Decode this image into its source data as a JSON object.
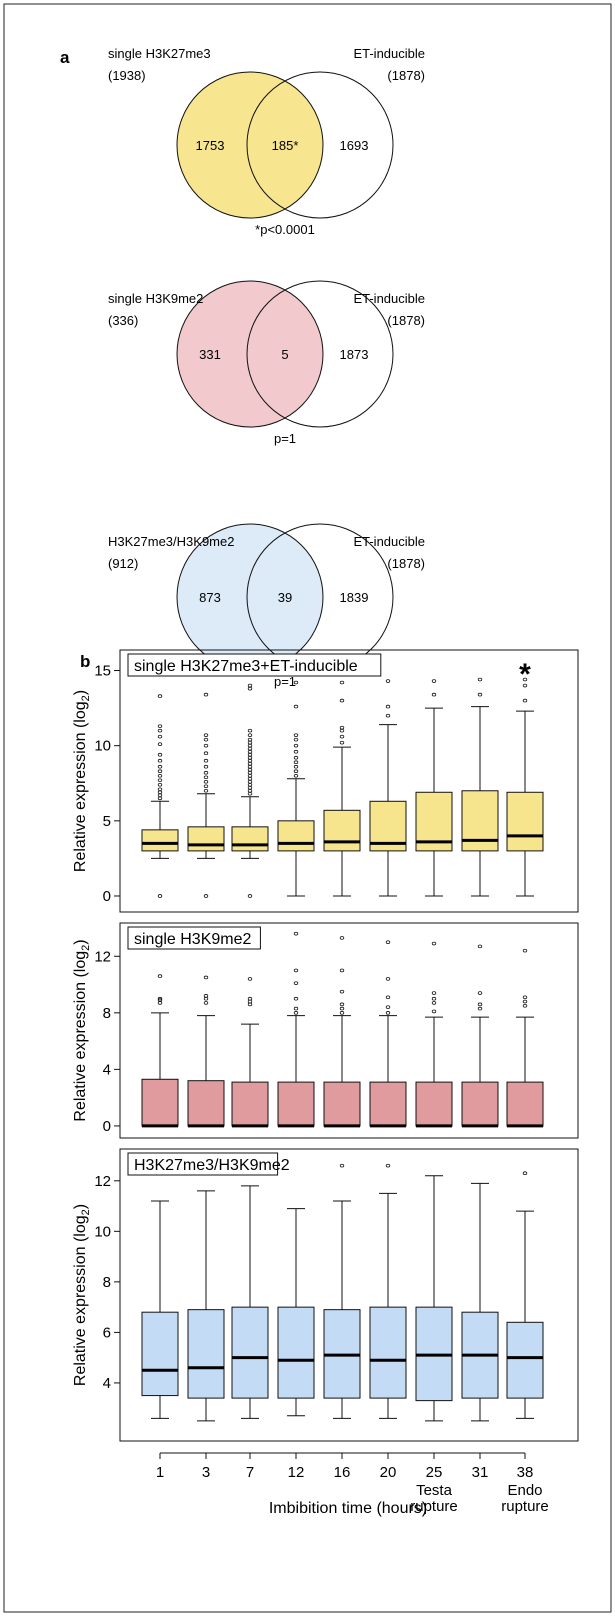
{
  "panel_labels": {
    "a": "a",
    "b": "b"
  },
  "colors": {
    "yellow": "#f7e68f",
    "pink": "#f2c9cc",
    "blue": "#ddeaf8",
    "box_yellow": "#f6e58c",
    "box_pink": "#df9b9d",
    "box_blue": "#c3dbf5"
  },
  "venns": [
    {
      "left_label": "single H3K27me3",
      "left_count": "(1938)",
      "right_label": "ET-inducible",
      "right_count": "(1878)",
      "left_only": "1753",
      "overlap": "185*",
      "right_only": "1693",
      "pvalue": "*p<0.0001",
      "fill": "yellow"
    },
    {
      "left_label": "single H3K9me2",
      "left_count": "(336)",
      "right_label": "ET-inducible",
      "right_count": "(1878)",
      "left_only": "331",
      "overlap": "5",
      "right_only": "1873",
      "pvalue": "p=1",
      "fill": "pink"
    },
    {
      "left_label": "H3K27me3/H3K9me2",
      "left_count": "(912)",
      "right_label": "ET-inducible",
      "right_count": "(1878)",
      "left_only": "873",
      "overlap": "39",
      "right_only": "1839",
      "pvalue": "p=1",
      "fill": "blue"
    }
  ],
  "chart_data": [
    {
      "type": "box",
      "title": "single H3K27me3+ET-inducible",
      "ylabel": "Relative expression (log",
      "ylabel_sub": "2",
      "ylabel_end": ")",
      "ylim": [
        -0.6,
        15.9
      ],
      "yticks": [
        0,
        5,
        10,
        15
      ],
      "star": "*",
      "star_index": 8,
      "categories": [
        "1",
        "3",
        "7",
        "12",
        "16",
        "20",
        "25",
        "31",
        "38"
      ],
      "fill": "box_yellow",
      "boxes": [
        {
          "min": 2.5,
          "q1": 3.0,
          "median": 3.5,
          "q3": 4.4,
          "max": 6.3,
          "outliers": [
            6.5,
            6.7,
            6.9,
            7.1,
            7.4,
            7.7,
            8.0,
            8.3,
            8.6,
            9.0,
            9.4,
            10.1,
            10.6,
            11.0,
            11.3,
            13.3,
            0.0
          ]
        },
        {
          "min": 2.5,
          "q1": 3.0,
          "median": 3.4,
          "q3": 4.6,
          "max": 6.8,
          "outliers": [
            7.0,
            7.3,
            7.6,
            7.9,
            8.2,
            8.6,
            9.0,
            9.5,
            10.0,
            10.4,
            10.7,
            13.4,
            0.0
          ]
        },
        {
          "min": 2.5,
          "q1": 3.0,
          "median": 3.4,
          "q3": 4.6,
          "max": 6.6,
          "outliers": [
            6.8,
            7.0,
            7.2,
            7.4,
            7.6,
            7.8,
            8.0,
            8.2,
            8.4,
            8.6,
            8.8,
            9.0,
            9.2,
            9.4,
            9.6,
            9.8,
            10.0,
            10.2,
            10.4,
            10.7,
            11.0,
            13.8,
            14.0,
            0.0
          ]
        },
        {
          "min": 0.0,
          "q1": 3.0,
          "median": 3.5,
          "q3": 5.0,
          "max": 7.8,
          "outliers": [
            8.0,
            8.3,
            8.6,
            8.9,
            9.2,
            9.6,
            10.0,
            10.4,
            10.7,
            12.6,
            14.2
          ]
        },
        {
          "min": 0.0,
          "q1": 3.0,
          "median": 3.6,
          "q3": 5.7,
          "max": 9.9,
          "outliers": [
            10.2,
            10.6,
            11.0,
            11.2,
            13.0,
            14.2
          ]
        },
        {
          "min": 0.0,
          "q1": 3.0,
          "median": 3.5,
          "q3": 6.3,
          "max": 11.4,
          "outliers": [
            12.0,
            12.6,
            14.3
          ]
        },
        {
          "min": 0.0,
          "q1": 3.0,
          "median": 3.6,
          "q3": 6.9,
          "max": 12.5,
          "outliers": [
            13.4,
            14.3
          ]
        },
        {
          "min": 0.0,
          "q1": 3.0,
          "median": 3.7,
          "q3": 7.0,
          "max": 12.6,
          "outliers": [
            13.4,
            14.4
          ]
        },
        {
          "min": 0.0,
          "q1": 3.0,
          "median": 4.0,
          "q3": 6.9,
          "max": 12.3,
          "outliers": [
            13.0,
            14.0,
            14.4
          ]
        }
      ]
    },
    {
      "type": "box",
      "title": "single H3K9me2",
      "ylabel": "Relative expression (log",
      "ylabel_sub": "2",
      "ylabel_end": ")",
      "ylim": [
        -0.5,
        14.0
      ],
      "yticks": [
        0,
        4,
        8,
        12
      ],
      "categories": [
        "1",
        "3",
        "7",
        "12",
        "16",
        "20",
        "25",
        "31",
        "38"
      ],
      "fill": "box_pink",
      "boxes": [
        {
          "min": 0.0,
          "q1": 0.0,
          "median": 0.0,
          "q3": 3.3,
          "max": 8.0,
          "outliers": [
            8.7,
            8.9,
            9.0,
            10.6
          ]
        },
        {
          "min": 0.0,
          "q1": 0.0,
          "median": 0.0,
          "q3": 3.2,
          "max": 7.8,
          "outliers": [
            8.7,
            9.0,
            9.2,
            10.5
          ]
        },
        {
          "min": 0.0,
          "q1": 0.0,
          "median": 0.0,
          "q3": 3.1,
          "max": 7.2,
          "outliers": [
            8.6,
            8.8,
            9.0,
            10.4
          ]
        },
        {
          "min": 0.0,
          "q1": 0.0,
          "median": 0.0,
          "q3": 3.1,
          "max": 7.8,
          "outliers": [
            8.0,
            8.3,
            9.0,
            10.1,
            11.0,
            13.6
          ]
        },
        {
          "min": 0.0,
          "q1": 0.0,
          "median": 0.0,
          "q3": 3.1,
          "max": 7.8,
          "outliers": [
            8.0,
            8.3,
            8.6,
            9.5,
            11.0,
            13.3
          ]
        },
        {
          "min": 0.0,
          "q1": 0.0,
          "median": 0.0,
          "q3": 3.1,
          "max": 7.8,
          "outliers": [
            8.0,
            8.4,
            9.1,
            10.4,
            13.0
          ]
        },
        {
          "min": 0.0,
          "q1": 0.0,
          "median": 0.0,
          "q3": 3.1,
          "max": 7.7,
          "outliers": [
            8.1,
            8.7,
            9.0,
            9.4,
            12.9
          ]
        },
        {
          "min": 0.0,
          "q1": 0.0,
          "median": 0.0,
          "q3": 3.1,
          "max": 7.7,
          "outliers": [
            8.3,
            8.6,
            9.4,
            12.7
          ]
        },
        {
          "min": 0.0,
          "q1": 0.0,
          "median": 0.0,
          "q3": 3.1,
          "max": 7.7,
          "outliers": [
            8.5,
            8.8,
            9.1,
            12.4
          ]
        }
      ]
    },
    {
      "type": "box",
      "title": "H3K27me3/H3K9me2",
      "ylabel": "Relative expression (log",
      "ylabel_sub": "2",
      "ylabel_end": ")",
      "ylim": [
        1.9,
        13.1
      ],
      "yticks": [
        4,
        6,
        8,
        10,
        12
      ],
      "categories": [
        "1",
        "3",
        "7",
        "12",
        "16",
        "20",
        "25",
        "31",
        "38"
      ],
      "category_notes": [
        "",
        "",
        "",
        "",
        "",
        "",
        "Testa|rupture",
        "",
        "Endo|rupture"
      ],
      "xlabel": "Imbibition time (hours)",
      "fill": "box_blue",
      "boxes": [
        {
          "min": 2.6,
          "q1": 3.5,
          "median": 4.5,
          "q3": 6.8,
          "max": 11.2,
          "outliers": []
        },
        {
          "min": 2.5,
          "q1": 3.4,
          "median": 4.6,
          "q3": 6.9,
          "max": 11.6,
          "outliers": []
        },
        {
          "min": 2.6,
          "q1": 3.4,
          "median": 5.0,
          "q3": 7.0,
          "max": 11.8,
          "outliers": []
        },
        {
          "min": 2.7,
          "q1": 3.4,
          "median": 4.9,
          "q3": 7.0,
          "max": 10.9,
          "outliers": []
        },
        {
          "min": 2.6,
          "q1": 3.4,
          "median": 5.1,
          "q3": 6.9,
          "max": 11.2,
          "outliers": [
            12.6
          ]
        },
        {
          "min": 2.6,
          "q1": 3.4,
          "median": 4.9,
          "q3": 7.0,
          "max": 11.5,
          "outliers": [
            12.6
          ]
        },
        {
          "min": 2.5,
          "q1": 3.3,
          "median": 5.1,
          "q3": 7.0,
          "max": 12.2,
          "outliers": []
        },
        {
          "min": 2.5,
          "q1": 3.4,
          "median": 5.1,
          "q3": 6.8,
          "max": 11.9,
          "outliers": []
        },
        {
          "min": 2.6,
          "q1": 3.4,
          "median": 5.0,
          "q3": 6.4,
          "max": 10.8,
          "outliers": [
            12.3
          ]
        }
      ]
    }
  ]
}
